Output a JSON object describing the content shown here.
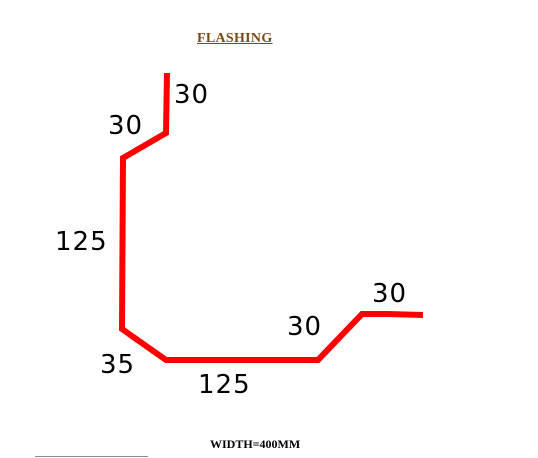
{
  "title": "FLASHING",
  "footer": "WIDTH=400MM",
  "profile_color": "#ff0000",
  "dimensions": {
    "top_lip": "30",
    "upper_bend": "30",
    "vertical": "125",
    "lower_bend": "35",
    "base": "125",
    "rise": "30",
    "end_lip": "30"
  }
}
